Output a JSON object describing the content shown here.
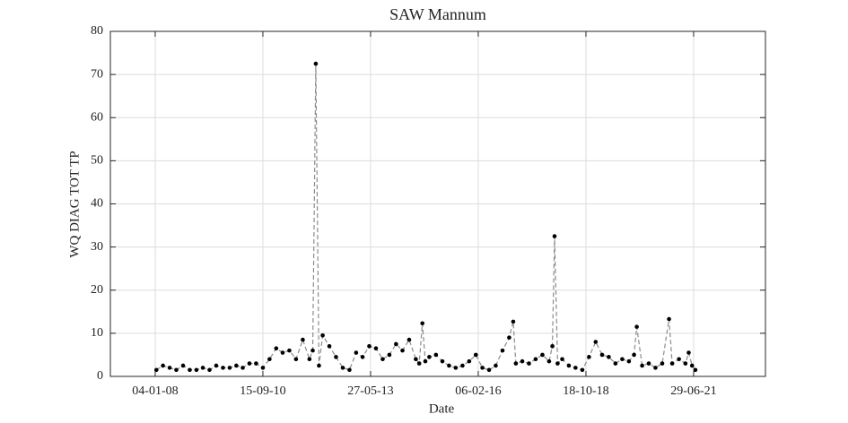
{
  "chart_data": {
    "type": "line",
    "title": "SAW Mannum",
    "x_label": "Date",
    "y_label": "WQ DIAG TOT TP",
    "x": [
      "15-01-08",
      "15-03-08",
      "15-05-08",
      "15-07-08",
      "15-09-08",
      "15-11-08",
      "15-01-09",
      "15-03-09",
      "15-05-09",
      "15-07-09",
      "15-09-09",
      "15-11-09",
      "15-01-10",
      "15-03-10",
      "15-05-10",
      "15-07-10",
      "15-09-10",
      "15-11-10",
      "15-01-11",
      "15-03-11",
      "15-05-11",
      "15-07-11",
      "15-09-11",
      "15-11-11",
      "15-12-11",
      "12-01-12",
      "10-02-12",
      "15-03-12",
      "15-05-12",
      "15-07-12",
      "15-09-12",
      "15-11-12",
      "15-01-13",
      "15-03-13",
      "15-05-13",
      "15-07-13",
      "15-09-13",
      "15-11-13",
      "15-01-14",
      "15-03-14",
      "15-05-14",
      "15-07-14",
      "15-08-14",
      "13-09-14",
      "10-10-14",
      "15-11-14",
      "15-01-15",
      "15-03-15",
      "15-05-15",
      "15-07-15",
      "15-09-15",
      "15-11-15",
      "15-01-16",
      "15-03-16",
      "15-05-16",
      "15-07-16",
      "15-09-16",
      "15-11-16",
      "22-12-16",
      "15-01-17",
      "15-03-17",
      "15-05-17",
      "15-07-17",
      "15-09-17",
      "15-11-17",
      "15-12-17",
      "04-01-18",
      "01-02-18",
      "15-03-18",
      "15-05-18",
      "15-07-18",
      "15-09-18",
      "15-11-18",
      "15-01-19",
      "15-03-19",
      "15-05-19",
      "15-07-19",
      "15-09-19",
      "15-11-19",
      "01-01-20",
      "26-01-20",
      "15-03-20",
      "15-05-20",
      "15-07-20",
      "15-09-20",
      "16-11-20",
      "15-12-20",
      "15-02-21",
      "15-04-21",
      "15-05-21",
      "15-06-21",
      "15-07-21"
    ],
    "series": [
      {
        "color": "#000000",
        "values": [
          1.5,
          2.5,
          2,
          1.5,
          2.5,
          1.5,
          1.5,
          2,
          1.5,
          2.5,
          2,
          2,
          2.5,
          2,
          3,
          3,
          2,
          4,
          6.5,
          5.5,
          6,
          4,
          8.5,
          4,
          6,
          72.5,
          2.5,
          9.5,
          7,
          4.5,
          2,
          1.5,
          5.5,
          4.5,
          7,
          6.5,
          4,
          5,
          7.5,
          6,
          8.5,
          4,
          3,
          12.3,
          3.5,
          4.5,
          5,
          3.5,
          2.5,
          2,
          2.5,
          3.5,
          5,
          2,
          1.5,
          2.5,
          6,
          9,
          12.7,
          3,
          3.5,
          3,
          4,
          5,
          3.5,
          7,
          32.5,
          3,
          4,
          2.5,
          2,
          1.5,
          4.5,
          8,
          5,
          4.5,
          3,
          4,
          3.5,
          5,
          11.5,
          2.5,
          3,
          2,
          3,
          13.3,
          3,
          4,
          3,
          5.5,
          2.5,
          1.5
        ]
      }
    ],
    "xlim": [
      "20-11-06",
      "17-04-23"
    ],
    "xticks": [
      "04-01-08",
      "15-09-10",
      "27-05-13",
      "06-02-16",
      "18-10-18",
      "29-06-21"
    ],
    "ylim": [
      0,
      80
    ],
    "yticks": [
      0,
      10,
      20,
      30,
      40,
      50,
      60,
      70,
      80
    ],
    "grid": true
  }
}
